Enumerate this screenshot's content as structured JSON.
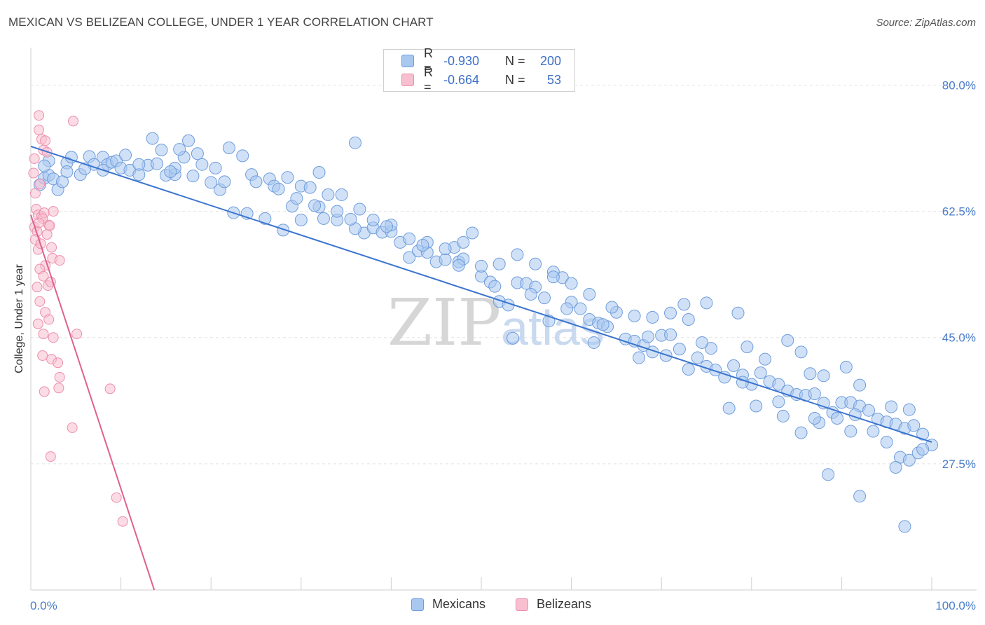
{
  "title": "MEXICAN VS BELIZEAN COLLEGE, UNDER 1 YEAR CORRELATION CHART",
  "source": "Source: ZipAtlas.com",
  "watermark": {
    "zip": "ZIP",
    "atlas": "atlas"
  },
  "legend": {
    "rows": [
      {
        "r_label": "R =",
        "r_value": "-0.930",
        "n_label": "N =",
        "n_value": "200"
      },
      {
        "r_label": "R =",
        "r_value": "-0.664",
        "n_label": "N =",
        "n_value": "53"
      }
    ]
  },
  "bottom_legend": {
    "mexicans": "Mexicans",
    "belizeans": "Belizeans"
  },
  "colors": {
    "blue_fill": "#a9c8f0",
    "blue_stroke": "#6f9ddc",
    "blue_line": "#3a74cf",
    "pink_fill": "#f7bfd0",
    "pink_stroke": "#ec8fae",
    "pink_line": "#e0608f",
    "grid": "#e3e3e3",
    "tick_text": "#4a7cc9"
  },
  "chart_data": {
    "type": "scatter",
    "title": "MEXICAN VS BELIZEAN COLLEGE, UNDER 1 YEAR CORRELATION CHART",
    "xlabel": "",
    "ylabel": "College, Under 1 year",
    "xlim": [
      0,
      100
    ],
    "ylim": [
      10,
      85
    ],
    "x_tick_labels": [
      "0.0%",
      "100.0%"
    ],
    "y_ticks": [
      27.5,
      45.0,
      62.5,
      80.0
    ],
    "y_tick_labels": [
      "27.5%",
      "45.0%",
      "62.5%",
      "80.0%"
    ],
    "grid": true,
    "series": [
      {
        "name": "Mexicans",
        "r": -0.93,
        "n": 200,
        "trend": {
          "x": [
            0,
            100
          ],
          "y": [
            71.5,
            30.5
          ]
        },
        "points": [
          [
            1.0,
            66.2
          ],
          [
            1.5,
            67.1
          ],
          [
            2.0,
            67.5
          ],
          [
            2.5,
            67.0
          ],
          [
            3.0,
            65.5
          ],
          [
            4.0,
            69.2
          ],
          [
            4.5,
            70.0
          ],
          [
            5.5,
            67.6
          ],
          [
            6.5,
            70.1
          ],
          [
            7.0,
            69.0
          ],
          [
            8.0,
            70.0
          ],
          [
            8.5,
            69.0
          ],
          [
            9.0,
            69.3
          ],
          [
            9.5,
            69.5
          ],
          [
            10.0,
            68.5
          ],
          [
            11.0,
            68.2
          ],
          [
            12.0,
            67.6
          ],
          [
            13.0,
            68.9
          ],
          [
            14.0,
            69.1
          ],
          [
            15.0,
            67.5
          ],
          [
            16.0,
            67.6
          ],
          [
            17.0,
            70.0
          ],
          [
            18.0,
            67.4
          ],
          [
            18.5,
            70.5
          ],
          [
            13.5,
            72.6
          ],
          [
            17.5,
            72.3
          ],
          [
            14.5,
            71.0
          ],
          [
            16.5,
            71.1
          ],
          [
            19.0,
            69.0
          ],
          [
            20.5,
            68.5
          ],
          [
            21.0,
            65.5
          ],
          [
            22.0,
            71.3
          ],
          [
            22.5,
            62.3
          ],
          [
            23.5,
            70.2
          ],
          [
            24.5,
            67.6
          ],
          [
            25.0,
            66.6
          ],
          [
            26.5,
            67.0
          ],
          [
            27.0,
            66.0
          ],
          [
            28.5,
            67.2
          ],
          [
            29.0,
            63.2
          ],
          [
            29.5,
            64.3
          ],
          [
            30.0,
            66.0
          ],
          [
            31.0,
            65.8
          ],
          [
            32.0,
            67.9
          ],
          [
            32.5,
            61.5
          ],
          [
            33.0,
            64.8
          ],
          [
            34.0,
            61.3
          ],
          [
            34.5,
            64.8
          ],
          [
            36.0,
            72.0
          ],
          [
            36.5,
            62.8
          ],
          [
            37.0,
            59.5
          ],
          [
            38.0,
            60.2
          ],
          [
            39.0,
            59.6
          ],
          [
            40.0,
            59.7
          ],
          [
            41.0,
            58.2
          ],
          [
            42.0,
            58.7
          ],
          [
            43.0,
            57.0
          ],
          [
            44.0,
            56.8
          ],
          [
            45.0,
            55.5
          ],
          [
            46.0,
            55.8
          ],
          [
            47.0,
            57.5
          ],
          [
            47.5,
            55.5
          ],
          [
            48.0,
            55.9
          ],
          [
            49.0,
            59.5
          ],
          [
            50.0,
            53.5
          ],
          [
            51.0,
            52.7
          ],
          [
            52.0,
            50.0
          ],
          [
            53.0,
            49.5
          ],
          [
            54.0,
            52.6
          ],
          [
            55.0,
            52.5
          ],
          [
            56.0,
            52.0
          ],
          [
            57.0,
            50.5
          ],
          [
            58.0,
            54.1
          ],
          [
            59.0,
            53.3
          ],
          [
            60.0,
            49.9
          ],
          [
            61.0,
            49.0
          ],
          [
            62.0,
            47.5
          ],
          [
            63.0,
            47.0
          ],
          [
            64.0,
            46.5
          ],
          [
            65.0,
            48.5
          ],
          [
            66.0,
            44.8
          ],
          [
            67.0,
            44.5
          ],
          [
            68.0,
            43.9
          ],
          [
            69.0,
            43.0
          ],
          [
            70.0,
            45.3
          ],
          [
            71.0,
            45.4
          ],
          [
            72.0,
            43.4
          ],
          [
            73.0,
            40.6
          ],
          [
            74.0,
            42.2
          ],
          [
            75.0,
            41.0
          ],
          [
            76.0,
            40.5
          ],
          [
            77.0,
            39.5
          ],
          [
            78.0,
            41.1
          ],
          [
            79.0,
            39.8
          ],
          [
            80.0,
            38.5
          ],
          [
            81.0,
            40.1
          ],
          [
            82.0,
            38.9
          ],
          [
            83.0,
            38.5
          ],
          [
            84.0,
            37.6
          ],
          [
            85.0,
            37.1
          ],
          [
            86.0,
            37.0
          ],
          [
            87.0,
            37.2
          ],
          [
            88.0,
            35.9
          ],
          [
            89.0,
            34.6
          ],
          [
            90.0,
            36.0
          ],
          [
            91.0,
            36.0
          ],
          [
            92.0,
            35.5
          ],
          [
            93.0,
            34.9
          ],
          [
            94.0,
            33.7
          ],
          [
            95.0,
            33.3
          ],
          [
            96.0,
            33.0
          ],
          [
            97.0,
            32.4
          ],
          [
            98.0,
            32.8
          ],
          [
            99.0,
            31.6
          ],
          [
            100.0,
            30.1
          ],
          [
            53.5,
            44.9
          ],
          [
            57.5,
            47.3
          ],
          [
            62.5,
            44.3
          ],
          [
            67.5,
            42.2
          ],
          [
            70.5,
            42.5
          ],
          [
            72.5,
            49.6
          ],
          [
            75.5,
            43.5
          ],
          [
            77.5,
            35.2
          ],
          [
            80.5,
            35.5
          ],
          [
            83.5,
            34.1
          ],
          [
            85.5,
            31.8
          ],
          [
            87.5,
            33.2
          ],
          [
            89.5,
            33.8
          ],
          [
            91.5,
            34.3
          ],
          [
            93.5,
            32.0
          ],
          [
            95.5,
            35.4
          ],
          [
            97.5,
            35.0
          ],
          [
            92.0,
            38.4
          ],
          [
            90.5,
            40.9
          ],
          [
            88.0,
            39.7
          ],
          [
            86.5,
            40.0
          ],
          [
            85.5,
            43.0
          ],
          [
            84.0,
            44.6
          ],
          [
            81.5,
            42.0
          ],
          [
            79.5,
            43.7
          ],
          [
            78.5,
            48.4
          ],
          [
            75.0,
            49.8
          ],
          [
            73.0,
            47.5
          ],
          [
            71.0,
            48.4
          ],
          [
            69.0,
            47.8
          ],
          [
            67.0,
            48.0
          ],
          [
            64.5,
            49.2
          ],
          [
            62.0,
            51.0
          ],
          [
            60.0,
            52.5
          ],
          [
            58.0,
            53.4
          ],
          [
            56.0,
            55.2
          ],
          [
            54.0,
            56.5
          ],
          [
            52.0,
            55.2
          ],
          [
            50.0,
            54.9
          ],
          [
            48.0,
            58.2
          ],
          [
            46.0,
            57.3
          ],
          [
            44.0,
            58.2
          ],
          [
            42.0,
            56.1
          ],
          [
            40.0,
            60.6
          ],
          [
            38.0,
            61.3
          ],
          [
            36.0,
            60.1
          ],
          [
            34.0,
            62.5
          ],
          [
            32.0,
            63.1
          ],
          [
            30.0,
            61.3
          ],
          [
            28.0,
            59.9
          ],
          [
            26.0,
            61.5
          ],
          [
            24.0,
            62.2
          ],
          [
            20.0,
            66.5
          ],
          [
            16.0,
            68.5
          ],
          [
            12.0,
            69.0
          ],
          [
            8.0,
            68.2
          ],
          [
            4.0,
            68.0
          ],
          [
            2.0,
            69.5
          ],
          [
            1.5,
            68.8
          ],
          [
            3.5,
            66.6
          ],
          [
            6.0,
            68.4
          ],
          [
            10.5,
            70.3
          ],
          [
            15.5,
            68.0
          ],
          [
            21.5,
            66.6
          ],
          [
            27.5,
            65.6
          ],
          [
            31.5,
            63.3
          ],
          [
            35.5,
            61.4
          ],
          [
            39.5,
            60.4
          ],
          [
            43.5,
            57.8
          ],
          [
            47.5,
            55.0
          ],
          [
            51.5,
            52.1
          ],
          [
            55.5,
            51.0
          ],
          [
            59.5,
            49.0
          ],
          [
            63.5,
            46.8
          ],
          [
            68.5,
            45.1
          ],
          [
            74.5,
            44.3
          ],
          [
            79.0,
            38.8
          ],
          [
            83.0,
            36.1
          ],
          [
            87.0,
            33.8
          ],
          [
            91.0,
            32.0
          ],
          [
            95.0,
            30.5
          ],
          [
            96.5,
            28.4
          ],
          [
            97.5,
            28.0
          ],
          [
            98.5,
            29.0
          ],
          [
            99.0,
            29.5
          ],
          [
            88.5,
            26.0
          ],
          [
            92.0,
            23.0
          ],
          [
            97.0,
            18.8
          ],
          [
            96.0,
            27.0
          ]
        ]
      },
      {
        "name": "Belizeans",
        "r": -0.664,
        "n": 53,
        "trend": {
          "x": [
            0,
            13.7
          ],
          "y": [
            62.0,
            10.0
          ]
        },
        "points": [
          [
            0.3,
            67.8
          ],
          [
            0.5,
            65.0
          ],
          [
            0.6,
            62.8
          ],
          [
            0.8,
            62.0
          ],
          [
            1.0,
            66.3
          ],
          [
            0.4,
            60.3
          ],
          [
            0.7,
            59.7
          ],
          [
            1.2,
            61.8
          ],
          [
            1.5,
            62.3
          ],
          [
            2.0,
            60.6
          ],
          [
            2.5,
            62.5
          ],
          [
            1.3,
            61.5
          ],
          [
            0.9,
            60.9
          ],
          [
            1.8,
            59.3
          ],
          [
            0.5,
            58.6
          ],
          [
            0.8,
            57.2
          ],
          [
            1.1,
            58.0
          ],
          [
            1.6,
            55.0
          ],
          [
            2.1,
            60.5
          ],
          [
            2.3,
            57.5
          ],
          [
            1.0,
            54.5
          ],
          [
            1.4,
            53.5
          ],
          [
            2.4,
            56.0
          ],
          [
            3.2,
            55.7
          ],
          [
            0.7,
            52.0
          ],
          [
            1.9,
            52.2
          ],
          [
            2.2,
            52.7
          ],
          [
            1.0,
            50.0
          ],
          [
            1.6,
            48.5
          ],
          [
            2.0,
            47.5
          ],
          [
            0.8,
            46.9
          ],
          [
            1.4,
            45.5
          ],
          [
            2.5,
            45.0
          ],
          [
            5.1,
            45.5
          ],
          [
            1.3,
            42.5
          ],
          [
            2.3,
            42.0
          ],
          [
            3.0,
            41.5
          ],
          [
            3.2,
            39.5
          ],
          [
            3.1,
            38.0
          ],
          [
            1.5,
            37.5
          ],
          [
            8.8,
            37.9
          ],
          [
            4.6,
            32.5
          ],
          [
            2.2,
            28.5
          ],
          [
            9.5,
            22.8
          ],
          [
            10.2,
            19.5
          ],
          [
            0.9,
            73.8
          ],
          [
            1.2,
            72.5
          ],
          [
            1.6,
            72.3
          ],
          [
            1.4,
            71.0
          ],
          [
            4.7,
            75.0
          ],
          [
            0.9,
            75.8
          ],
          [
            0.4,
            69.8
          ],
          [
            1.8,
            70.7
          ]
        ]
      }
    ]
  }
}
